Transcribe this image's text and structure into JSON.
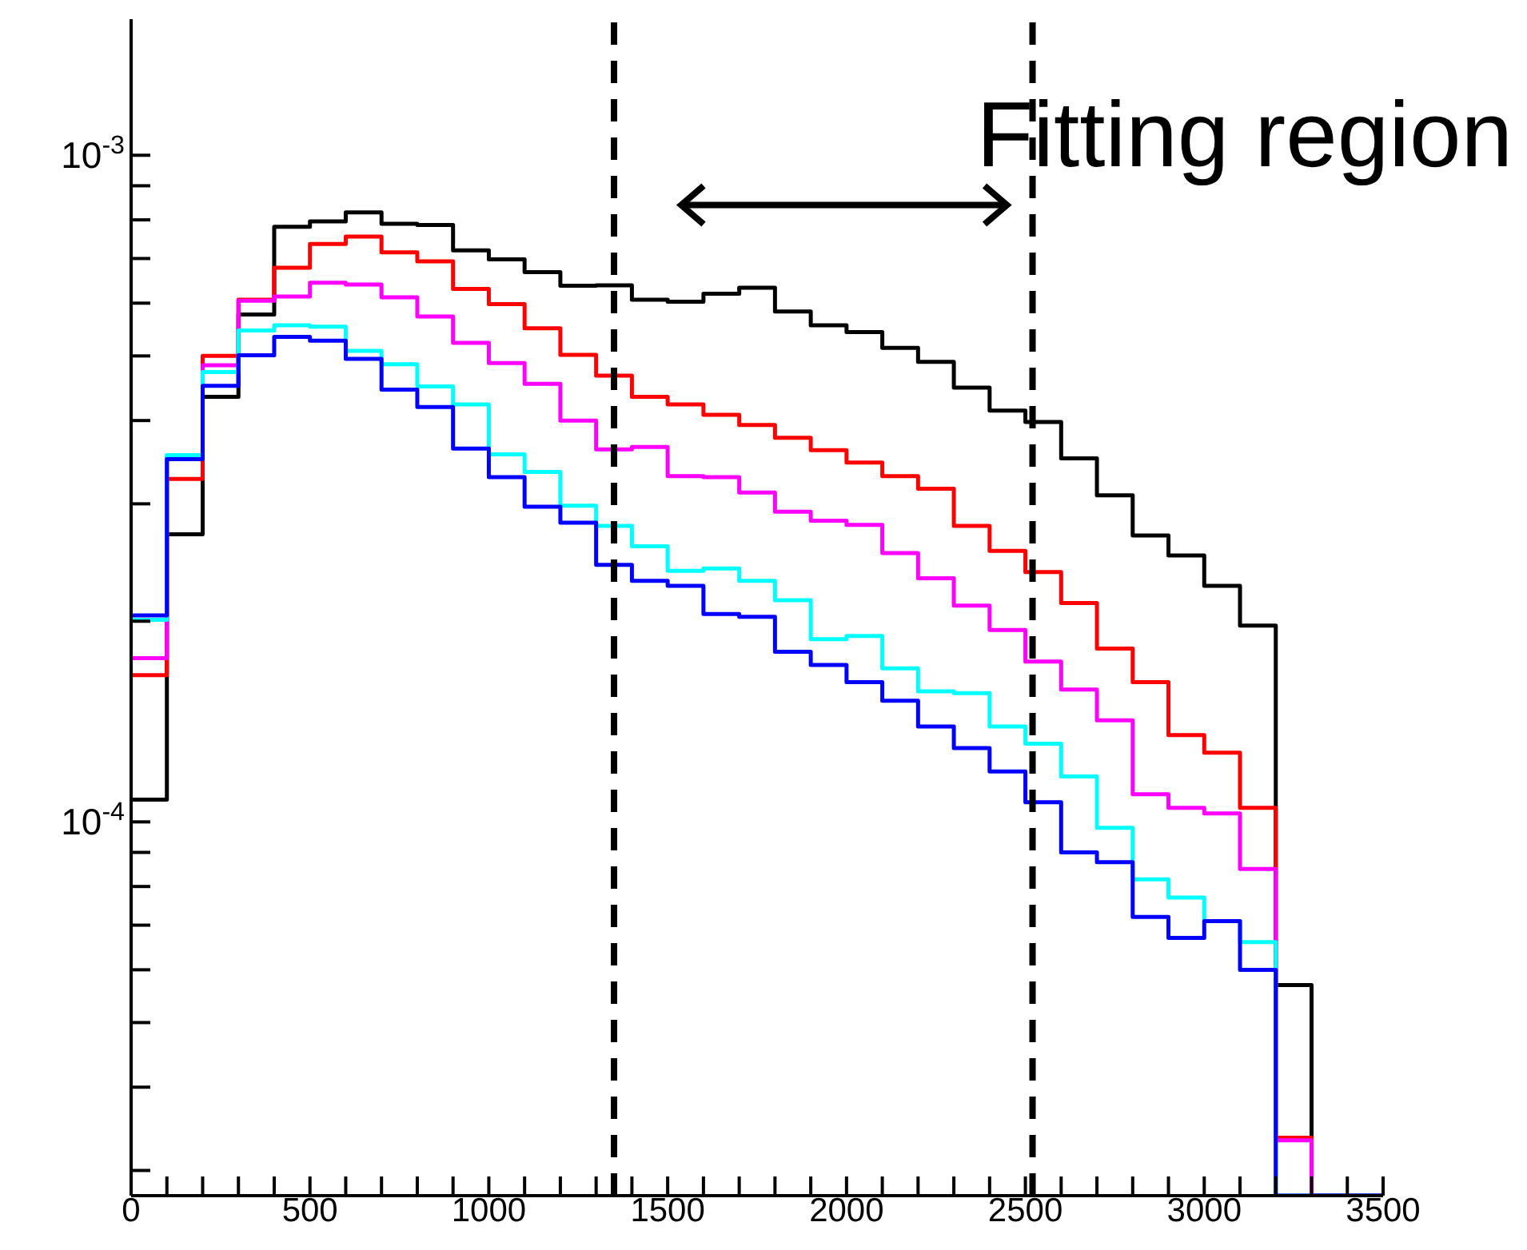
{
  "chart_data": {
    "type": "histogram",
    "log": "y",
    "annotations": [
      "Fitting region"
    ],
    "bins": [
      0,
      100,
      200,
      300,
      400,
      500,
      600,
      700,
      800,
      900,
      1000,
      1100,
      1200,
      1300,
      1400,
      1500,
      1600,
      1700,
      1800,
      1900,
      2000,
      2100,
      2200,
      2300,
      2400,
      2500,
      2600,
      2700,
      2800,
      2900,
      3000,
      3100,
      3200,
      3300,
      3400,
      3500
    ],
    "series": [
      {
        "color": "#000000",
        "values": [
          0.000108,
          0.00027,
          0.000434,
          0.000577,
          0.000781,
          0.000796,
          0.000821,
          0.000789,
          0.000786,
          0.00072,
          0.000698,
          0.000668,
          0.000637,
          0.000638,
          0.000607,
          0.000603,
          0.00062,
          0.000633,
          0.000583,
          0.000556,
          0.000543,
          0.000514,
          0.00049,
          0.000448,
          0.000414,
          0.000398,
          0.000351,
          0.000309,
          0.000269,
          0.000251,
          0.000226,
          0.000197,
          5.69e-05,
          null,
          null
        ]
      },
      {
        "color": "#ff0000",
        "values": [
          0.000166,
          0.000327,
          0.0005,
          0.000607,
          0.000678,
          0.000736,
          0.000755,
          0.000715,
          0.000693,
          0.00063,
          0.000598,
          0.00055,
          0.000502,
          0.000467,
          0.000434,
          0.000423,
          0.000408,
          0.000394,
          0.000377,
          0.000361,
          0.000346,
          0.00033,
          0.000316,
          0.000278,
          0.000255,
          0.000237,
          0.000213,
          0.000182,
          0.000162,
          0.000135,
          0.000127,
          0.000105,
          3.36e-05,
          null,
          null
        ]
      },
      {
        "color": "#ff00ff",
        "values": [
          0.000176,
          0.000353,
          0.000484,
          0.000605,
          0.000614,
          0.000644,
          0.00064,
          0.000612,
          0.000573,
          0.000523,
          0.000488,
          0.000454,
          0.0004,
          0.000362,
          0.000365,
          0.00033,
          0.000329,
          0.000312,
          0.000292,
          0.000283,
          0.000279,
          0.000253,
          0.000232,
          0.000211,
          0.000194,
          0.000174,
          0.000158,
          0.000142,
          0.00011,
          0.000105,
          0.000103,
          8.5e-05,
          3.33e-05,
          null,
          null
        ]
      },
      {
        "color": "#00ffff",
        "values": [
          0.000201,
          0.000355,
          0.000473,
          0.000546,
          0.000556,
          0.000553,
          0.000509,
          0.000486,
          0.00045,
          0.000423,
          0.000356,
          0.000335,
          0.000298,
          0.000278,
          0.000259,
          0.000238,
          0.00024,
          0.00023,
          0.000215,
          0.000188,
          0.00019,
          0.00017,
          0.000157,
          0.000156,
          0.000139,
          0.000131,
          0.000117,
          9.8e-05,
          8.2e-05,
          7.7e-05,
          7.1e-05,
          6.6e-05,
          null,
          null,
          null
        ]
      },
      {
        "color": "#0000ff",
        "values": [
          0.000204,
          0.00035,
          0.000451,
          0.000501,
          0.000534,
          0.000527,
          0.000495,
          0.000445,
          0.000419,
          0.000363,
          0.000329,
          0.000297,
          0.000281,
          0.000243,
          0.00023,
          0.000226,
          0.000205,
          0.000203,
          0.00018,
          0.000172,
          0.000162,
          0.000152,
          0.000139,
          0.000129,
          0.000119,
          0.000107,
          9e-05,
          8.7e-05,
          7.2e-05,
          6.7e-05,
          7.1e-05,
          6e-05,
          null,
          null,
          null
        ]
      }
    ],
    "xlim": [
      0,
      3500
    ],
    "xticks": [
      0,
      {
        "value": 100,
        "label": null
      },
      {
        "value": 200,
        "label": null
      },
      {
        "value": 300,
        "label": null
      },
      {
        "value": 400,
        "label": null
      },
      500,
      {
        "value": 600,
        "label": null
      },
      {
        "value": 700,
        "label": null
      },
      {
        "value": 800,
        "label": null
      },
      {
        "value": 900,
        "label": null
      },
      1000,
      {
        "value": 1100,
        "label": null
      },
      {
        "value": 1200,
        "label": null
      },
      {
        "value": 1300,
        "label": null
      },
      {
        "value": 1400,
        "label": null
      },
      1500,
      {
        "value": 1600,
        "label": null
      },
      {
        "value": 1700,
        "label": null
      },
      {
        "value": 1800,
        "label": null
      },
      {
        "value": 1900,
        "label": null
      },
      2000,
      {
        "value": 2100,
        "label": null
      },
      {
        "value": 2200,
        "label": null
      },
      {
        "value": 2300,
        "label": null
      },
      {
        "value": 2400,
        "label": null
      },
      2500,
      {
        "value": 2600,
        "label": null
      },
      {
        "value": 2700,
        "label": null
      },
      {
        "value": 2800,
        "label": null
      },
      {
        "value": 2900,
        "label": null
      },
      3000,
      {
        "value": 3100,
        "label": null
      },
      {
        "value": 3200,
        "label": null
      },
      {
        "value": 3300,
        "label": null
      },
      {
        "value": 3400,
        "label": null
      },
      3500
    ],
    "ylim": [
      2.75e-05,
      0.0016
    ],
    "yticks": [
      {
        "value": 3e-05,
        "label": null
      },
      {
        "value": 4e-05,
        "label": null
      },
      {
        "value": 5e-05,
        "label": null
      },
      {
        "value": 6e-05,
        "label": null
      },
      {
        "value": 7e-05,
        "label": null
      },
      {
        "value": 8e-05,
        "label": null
      },
      {
        "value": 9e-05,
        "label": null
      },
      {
        "value": 0.0001,
        "label": "10$^{-4}$"
      },
      {
        "value": 0.0002,
        "label": null
      },
      {
        "value": 0.0003,
        "label": null
      },
      {
        "value": 0.0004,
        "label": null
      },
      {
        "value": 0.0005,
        "label": null
      },
      {
        "value": 0.0006,
        "label": null
      },
      {
        "value": 0.0007,
        "label": null
      },
      {
        "value": 0.0008,
        "label": null
      },
      {
        "value": 0.0009,
        "label": null
      },
      {
        "value": 0.001,
        "label": "10$^{-3}$"
      }
    ],
    "ref_lines": [
      {
        "axis": "x",
        "value": 1350,
        "color": "#000000",
        "line_style": "dashed"
      },
      {
        "axis": "x",
        "value": 2520,
        "color": "#000000",
        "line_style": "dashed"
      }
    ],
    "grid": false,
    "legend": false
  }
}
